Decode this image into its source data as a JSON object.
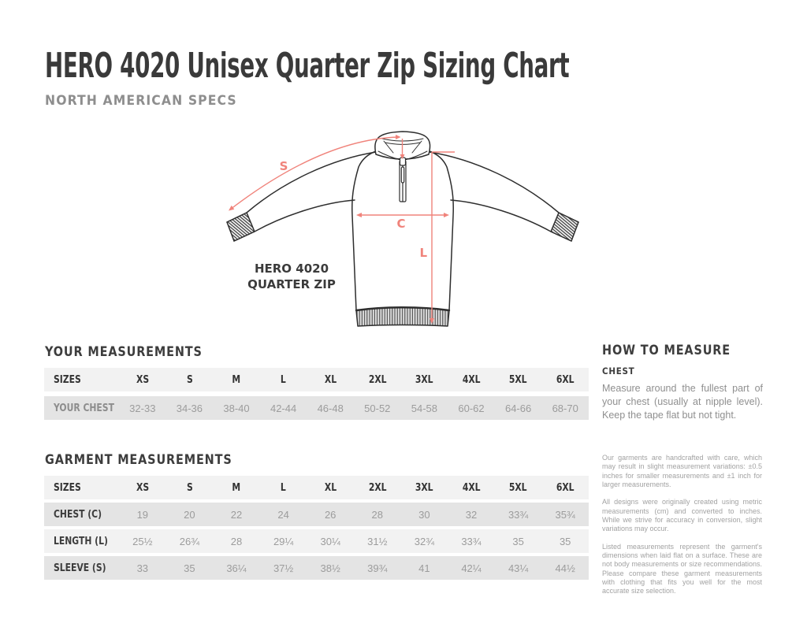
{
  "page": {
    "title": "HERO 4020 Unisex Quarter Zip Sizing Chart",
    "subtitle": "NORTH AMERICAN SPECS"
  },
  "theme": {
    "accent_color": "#f0837b",
    "heading_color": "#3a3a3a",
    "line_art_color": "#2e2e2e",
    "row_dark": "#e4e4e4",
    "row_light": "#f2f2f2"
  },
  "diagram": {
    "label_line1": "HERO 4020",
    "label_line2": "QUARTER ZIP",
    "sleeve_label": "S",
    "chest_label": "C",
    "length_label": "L"
  },
  "your_measurements": {
    "heading": "YOUR MEASUREMENTS",
    "columns": [
      "SIZES",
      "XS",
      "S",
      "M",
      "L",
      "XL",
      "2XL",
      "3XL",
      "4XL",
      "5XL",
      "6XL"
    ],
    "rows": [
      {
        "label": "YOUR CHEST",
        "values": [
          "32-33",
          "34-36",
          "38-40",
          "42-44",
          "46-48",
          "50-52",
          "54-58",
          "60-62",
          "64-66",
          "68-70"
        ]
      }
    ]
  },
  "garment_measurements": {
    "heading": "GARMENT MEASUREMENTS",
    "columns": [
      "SIZES",
      "XS",
      "S",
      "M",
      "L",
      "XL",
      "2XL",
      "3XL",
      "4XL",
      "5XL",
      "6XL"
    ],
    "rows": [
      {
        "label": "CHEST (C)",
        "values": [
          "19",
          "20",
          "22",
          "24",
          "26",
          "28",
          "30",
          "32",
          "33¾",
          "35¾"
        ]
      },
      {
        "label": "LENGTH (L)",
        "values": [
          "25½",
          "26¾",
          "28",
          "29¼",
          "30¼",
          "31½",
          "32¾",
          "33¾",
          "35",
          "35"
        ]
      },
      {
        "label": "SLEEVE (S)",
        "values": [
          "33",
          "35",
          "36¼",
          "37½",
          "38½",
          "39¾",
          "41",
          "42¼",
          "43¼",
          "44½"
        ]
      }
    ]
  },
  "how_to_measure": {
    "heading": "HOW TO MEASURE",
    "subheading": "CHEST",
    "body": "Measure around the fullest part of your chest (usually at nipple level). Keep the tape flat but not tight."
  },
  "notes": {
    "paragraphs": [
      "Our garments are handcrafted with care, which may result in slight measurement variations: ±0.5 inches for smaller measurements and ±1 inch for larger measurements.",
      "All designs were originally created using metric measurements (cm) and converted to inches. While we strive for accuracy in conversion, slight variations may occur.",
      "Listed measurements represent the garment's dimensions when laid flat on a surface. These are not body measurements or size recommendations. Please compare these garment measurements with clothing that fits you well for the most accurate size selection."
    ]
  }
}
